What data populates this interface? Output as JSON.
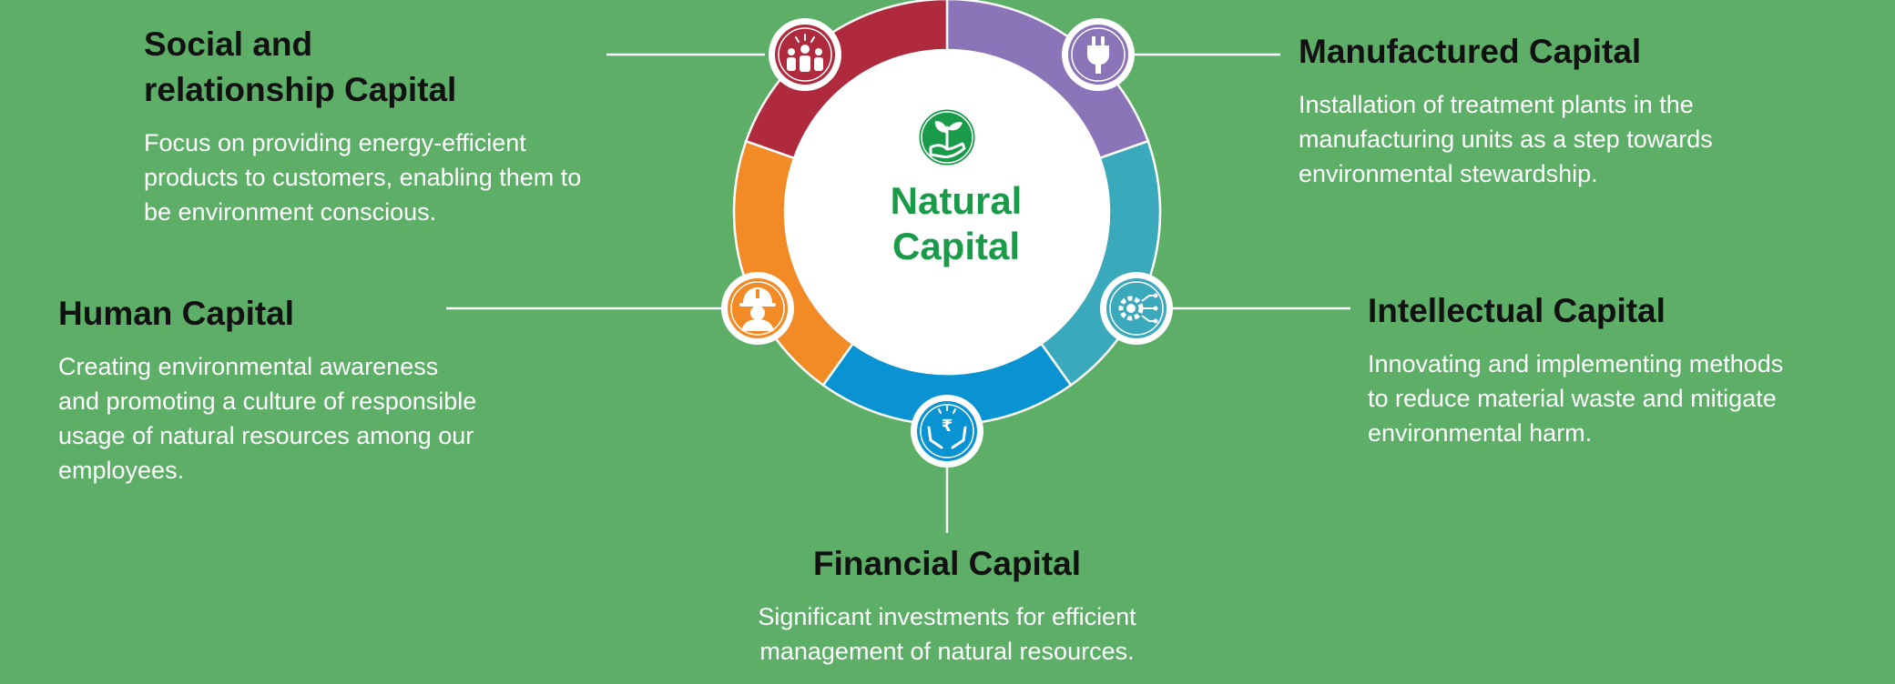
{
  "colors": {
    "background": "#5daf68",
    "social": "#b02a3e",
    "manufactured": "#8b74b8",
    "intellectual": "#3aa9bb",
    "financial": "#0a93d3",
    "human": "#f28a25",
    "natural": "#1a9b4a",
    "connector": "#ffffff",
    "heading": "#111111",
    "body": "#ffffff"
  },
  "center": {
    "title_line1": "Natural",
    "title_line2": "Capital",
    "icon": "plant-in-hand-icon"
  },
  "capitals": {
    "social": {
      "title_line1": "Social and",
      "title_line2": "relationship Capital",
      "lines": [
        "Focus on providing energy-efficient",
        "products to customers, enabling them to",
        "be environment conscious."
      ],
      "icon": "people-group-icon"
    },
    "manufactured": {
      "title": "Manufactured Capital",
      "lines": [
        "Installation of treatment plants in the",
        "manufacturing units as a step towards",
        "environmental stewardship."
      ],
      "icon": "power-plug-icon"
    },
    "human": {
      "title": "Human Capital",
      "lines": [
        "Creating environmental awareness",
        "and promoting a culture of responsible",
        "usage of natural resources among our",
        "employees."
      ],
      "icon": "worker-helmet-icon"
    },
    "intellectual": {
      "title": "Intellectual Capital",
      "lines": [
        "Innovating and implementing methods",
        "to reduce material waste and mitigate",
        "environmental harm."
      ],
      "icon": "gear-circuit-icon"
    },
    "financial": {
      "title": "Financial Capital",
      "lines": [
        "Significant investments for efficient",
        "management of natural resources."
      ],
      "icon": "rupee-hands-icon"
    }
  }
}
